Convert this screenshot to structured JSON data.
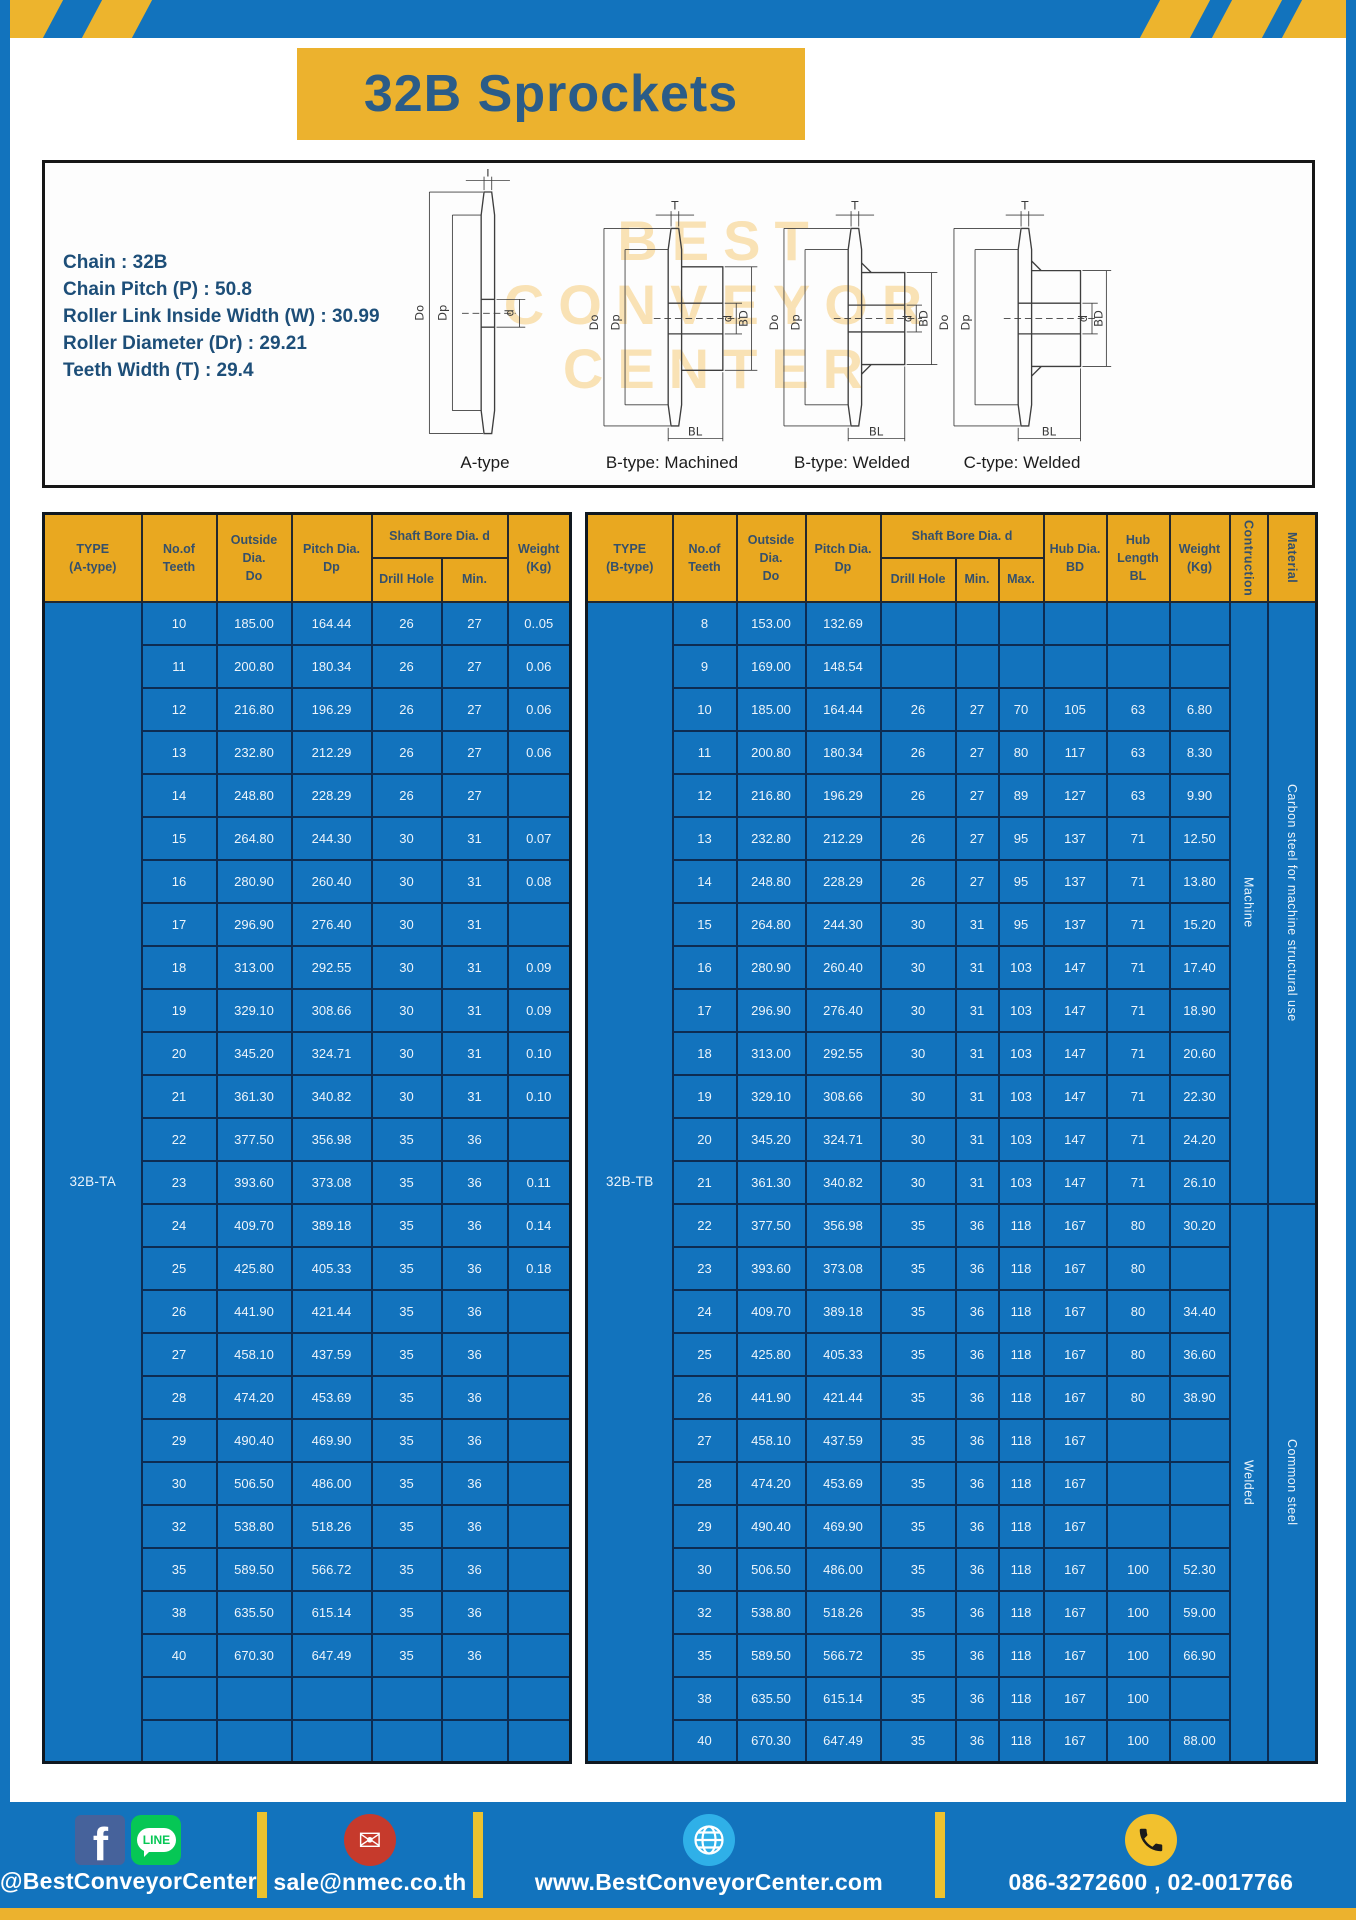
{
  "page": {
    "title": "32B Sprockets"
  },
  "specs": {
    "lines": [
      "Chain : 32B",
      "Chain Pitch (P) : 50.8",
      "Roller Link Inside Width (W) : 30.99",
      "Roller Diameter (Dr) : 29.21",
      "Teeth Width (T) : 29.4"
    ]
  },
  "diagram": {
    "watermark_lines": [
      "BEST",
      "CONVEYOR",
      "CENTER"
    ],
    "captions": [
      "A-type",
      "B-type: Machined",
      "B-type: Welded",
      "C-type: Welded"
    ],
    "dims": {
      "t": "T",
      "do": "Do",
      "dp": "Dp",
      "d": "d",
      "bd": "BD",
      "bl": "BL"
    }
  },
  "left_table": {
    "type_label": "32B-TA",
    "headers": {
      "type": "TYPE\n(A-type)",
      "teeth": "No.of\nTeeth",
      "outside_dia": "Outside\nDia.\nDo",
      "pitch_dia": "Pitch Dia.\nDp",
      "shaft_bore": "Shaft Bore Dia. d",
      "drill_hole": "Drill Hole",
      "min": "Min.",
      "weight": "Weight\n(Kg)"
    },
    "rows": [
      [
        "10",
        "185.00",
        "164.44",
        "26",
        "27",
        "0..05"
      ],
      [
        "11",
        "200.80",
        "180.34",
        "26",
        "27",
        "0.06"
      ],
      [
        "12",
        "216.80",
        "196.29",
        "26",
        "27",
        "0.06"
      ],
      [
        "13",
        "232.80",
        "212.29",
        "26",
        "27",
        "0.06"
      ],
      [
        "14",
        "248.80",
        "228.29",
        "26",
        "27",
        ""
      ],
      [
        "15",
        "264.80",
        "244.30",
        "30",
        "31",
        "0.07"
      ],
      [
        "16",
        "280.90",
        "260.40",
        "30",
        "31",
        "0.08"
      ],
      [
        "17",
        "296.90",
        "276.40",
        "30",
        "31",
        ""
      ],
      [
        "18",
        "313.00",
        "292.55",
        "30",
        "31",
        "0.09"
      ],
      [
        "19",
        "329.10",
        "308.66",
        "30",
        "31",
        "0.09"
      ],
      [
        "20",
        "345.20",
        "324.71",
        "30",
        "31",
        "0.10"
      ],
      [
        "21",
        "361.30",
        "340.82",
        "30",
        "31",
        "0.10"
      ],
      [
        "22",
        "377.50",
        "356.98",
        "35",
        "36",
        ""
      ],
      [
        "23",
        "393.60",
        "373.08",
        "35",
        "36",
        "0.11"
      ],
      [
        "24",
        "409.70",
        "389.18",
        "35",
        "36",
        "0.14"
      ],
      [
        "25",
        "425.80",
        "405.33",
        "35",
        "36",
        "0.18"
      ],
      [
        "26",
        "441.90",
        "421.44",
        "35",
        "36",
        ""
      ],
      [
        "27",
        "458.10",
        "437.59",
        "35",
        "36",
        ""
      ],
      [
        "28",
        "474.20",
        "453.69",
        "35",
        "36",
        ""
      ],
      [
        "29",
        "490.40",
        "469.90",
        "35",
        "36",
        ""
      ],
      [
        "30",
        "506.50",
        "486.00",
        "35",
        "36",
        ""
      ],
      [
        "32",
        "538.80",
        "518.26",
        "35",
        "36",
        ""
      ],
      [
        "35",
        "589.50",
        "566.72",
        "35",
        "36",
        ""
      ],
      [
        "38",
        "635.50",
        "615.14",
        "35",
        "36",
        ""
      ],
      [
        "40",
        "670.30",
        "647.49",
        "35",
        "36",
        ""
      ],
      [
        "",
        "",
        "",
        "",
        "",
        ""
      ],
      [
        "",
        "",
        "",
        "",
        "",
        ""
      ]
    ]
  },
  "right_table": {
    "type_label": "32B-TB",
    "headers": {
      "type": "TYPE\n(B-type)",
      "teeth": "No.of\nTeeth",
      "outside_dia": "Outside\nDia.\nDo",
      "pitch_dia": "Pitch Dia.\nDp",
      "shaft_bore": "Shaft Bore Dia. d",
      "drill_hole": "Drill Hole",
      "min": "Min.",
      "max": "Max.",
      "hub_dia": "Hub Dia.\nBD",
      "hub_length": "Hub\nLength\nBL",
      "weight": "Weight\n(Kg)",
      "construction": "Contruction",
      "material": "Material"
    },
    "construction_col": [
      {
        "label": "Machine",
        "span": 14
      },
      {
        "label": "Welded",
        "span": 13
      }
    ],
    "material_col": [
      {
        "label": "Carbon steel for machine structural use",
        "span": 14
      },
      {
        "label": "Common steel",
        "span": 13
      }
    ],
    "rows": [
      [
        "8",
        "153.00",
        "132.69",
        "",
        "",
        "",
        "",
        "",
        ""
      ],
      [
        "9",
        "169.00",
        "148.54",
        "",
        "",
        "",
        "",
        "",
        ""
      ],
      [
        "10",
        "185.00",
        "164.44",
        "26",
        "27",
        "70",
        "105",
        "63",
        "6.80"
      ],
      [
        "11",
        "200.80",
        "180.34",
        "26",
        "27",
        "80",
        "117",
        "63",
        "8.30"
      ],
      [
        "12",
        "216.80",
        "196.29",
        "26",
        "27",
        "89",
        "127",
        "63",
        "9.90"
      ],
      [
        "13",
        "232.80",
        "212.29",
        "26",
        "27",
        "95",
        "137",
        "71",
        "12.50"
      ],
      [
        "14",
        "248.80",
        "228.29",
        "26",
        "27",
        "95",
        "137",
        "71",
        "13.80"
      ],
      [
        "15",
        "264.80",
        "244.30",
        "30",
        "31",
        "95",
        "137",
        "71",
        "15.20"
      ],
      [
        "16",
        "280.90",
        "260.40",
        "30",
        "31",
        "103",
        "147",
        "71",
        "17.40"
      ],
      [
        "17",
        "296.90",
        "276.40",
        "30",
        "31",
        "103",
        "147",
        "71",
        "18.90"
      ],
      [
        "18",
        "313.00",
        "292.55",
        "30",
        "31",
        "103",
        "147",
        "71",
        "20.60"
      ],
      [
        "19",
        "329.10",
        "308.66",
        "30",
        "31",
        "103",
        "147",
        "71",
        "22.30"
      ],
      [
        "20",
        "345.20",
        "324.71",
        "30",
        "31",
        "103",
        "147",
        "71",
        "24.20"
      ],
      [
        "21",
        "361.30",
        "340.82",
        "30",
        "31",
        "103",
        "147",
        "71",
        "26.10"
      ],
      [
        "22",
        "377.50",
        "356.98",
        "35",
        "36",
        "118",
        "167",
        "80",
        "30.20"
      ],
      [
        "23",
        "393.60",
        "373.08",
        "35",
        "36",
        "118",
        "167",
        "80",
        ""
      ],
      [
        "24",
        "409.70",
        "389.18",
        "35",
        "36",
        "118",
        "167",
        "80",
        "34.40"
      ],
      [
        "25",
        "425.80",
        "405.33",
        "35",
        "36",
        "118",
        "167",
        "80",
        "36.60"
      ],
      [
        "26",
        "441.90",
        "421.44",
        "35",
        "36",
        "118",
        "167",
        "80",
        "38.90"
      ],
      [
        "27",
        "458.10",
        "437.59",
        "35",
        "36",
        "118",
        "167",
        "",
        ""
      ],
      [
        "28",
        "474.20",
        "453.69",
        "35",
        "36",
        "118",
        "167",
        "",
        ""
      ],
      [
        "29",
        "490.40",
        "469.90",
        "35",
        "36",
        "118",
        "167",
        "",
        ""
      ],
      [
        "30",
        "506.50",
        "486.00",
        "35",
        "36",
        "118",
        "167",
        "100",
        "52.30"
      ],
      [
        "32",
        "538.80",
        "518.26",
        "35",
        "36",
        "118",
        "167",
        "100",
        "59.00"
      ],
      [
        "35",
        "589.50",
        "566.72",
        "35",
        "36",
        "118",
        "167",
        "100",
        "66.90"
      ],
      [
        "38",
        "635.50",
        "615.14",
        "35",
        "36",
        "118",
        "167",
        "100",
        ""
      ],
      [
        "40",
        "670.30",
        "647.49",
        "35",
        "36",
        "118",
        "167",
        "100",
        "88.00"
      ]
    ]
  },
  "footer": {
    "facebook_f": "f",
    "line_text": "LINE",
    "social_handle": "@BestConveyorCenter",
    "email": "sale@nmec.co.th",
    "website": "www.BestConveyorCenter.com",
    "phone_numbers": "086-3272600 , 02-0017766"
  },
  "colors": {
    "frame_blue": "#1273bd",
    "accent_yellow": "#ecb22e",
    "header_yellow": "#e9a820",
    "cell_blue": "#1273bd",
    "border_navy": "#0d2c52",
    "title_text": "#2b5c88",
    "spec_text": "#1d4e78",
    "facebook_blue": "#46629b",
    "line_green": "#06c755",
    "mail_red": "#c63a2c",
    "globe_blue": "#2fb0e8",
    "phone_yellow": "#f2c12e"
  }
}
